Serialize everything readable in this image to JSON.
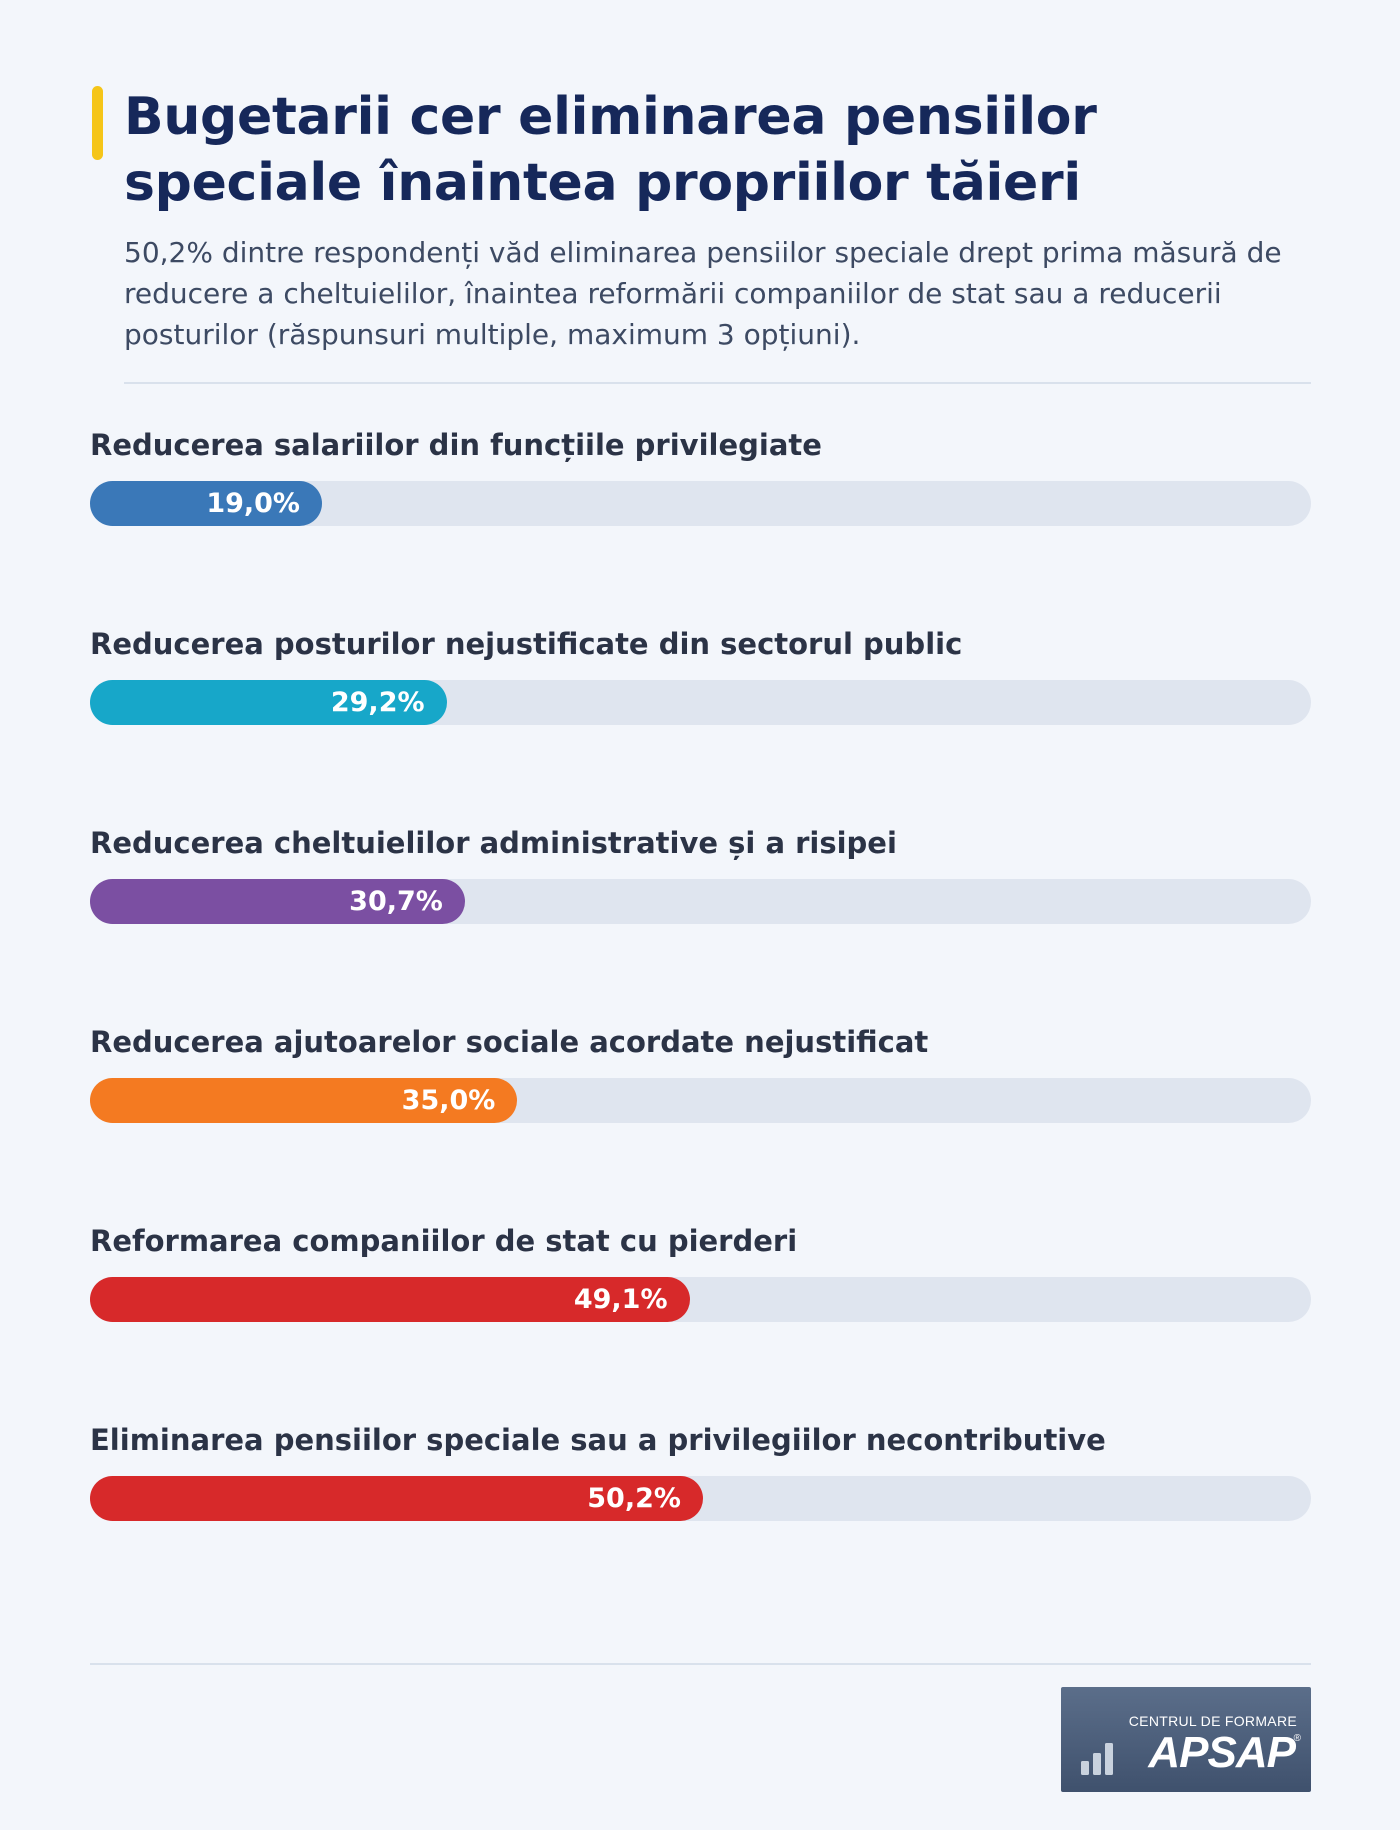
{
  "header": {
    "title": "Bugetarii cer eliminarea pensiilor speciale înaintea propriilor tăieri",
    "subtitle": "50,2% dintre respondenți văd eliminarea pensiilor speciale drept prima măsură de reducere a cheltuielilor, înaintea reformării companiilor de stat sau a reducerii posturilor (răspunsuri multiple, maximum 3 opțiuni)."
  },
  "chart_data": {
    "type": "bar",
    "orientation": "horizontal",
    "xlim": [
      0,
      100
    ],
    "grid": false,
    "legend": "none",
    "categories": [
      "Reducerea salariilor din funcțiile privilegiate",
      "Reducerea posturilor nejustificate din sectorul public",
      "Reducerea cheltuielilor administrative și a risipei",
      "Reducerea ajutoarelor sociale acordate nejustificat",
      "Reformarea companiilor de stat cu pierderi",
      "Eliminarea pensiilor speciale sau a privilegiilor necontributive"
    ],
    "values": [
      19.0,
      29.2,
      30.7,
      35.0,
      49.1,
      50.2
    ],
    "value_labels": [
      "19,0%",
      "29,2%",
      "30,7%",
      "35,0%",
      "49,1%",
      "50,2%"
    ],
    "colors": [
      "#3a78b8",
      "#17a7c9",
      "#7b4fa2",
      "#f47a21",
      "#d7292a",
      "#d7292a"
    ],
    "track_color": "#dfe5ef"
  },
  "logo": {
    "top_text": "CENTRUL DE FORMARE",
    "name": "APSAP",
    "registered_mark": "®",
    "icon": "bar-chart-icon"
  }
}
